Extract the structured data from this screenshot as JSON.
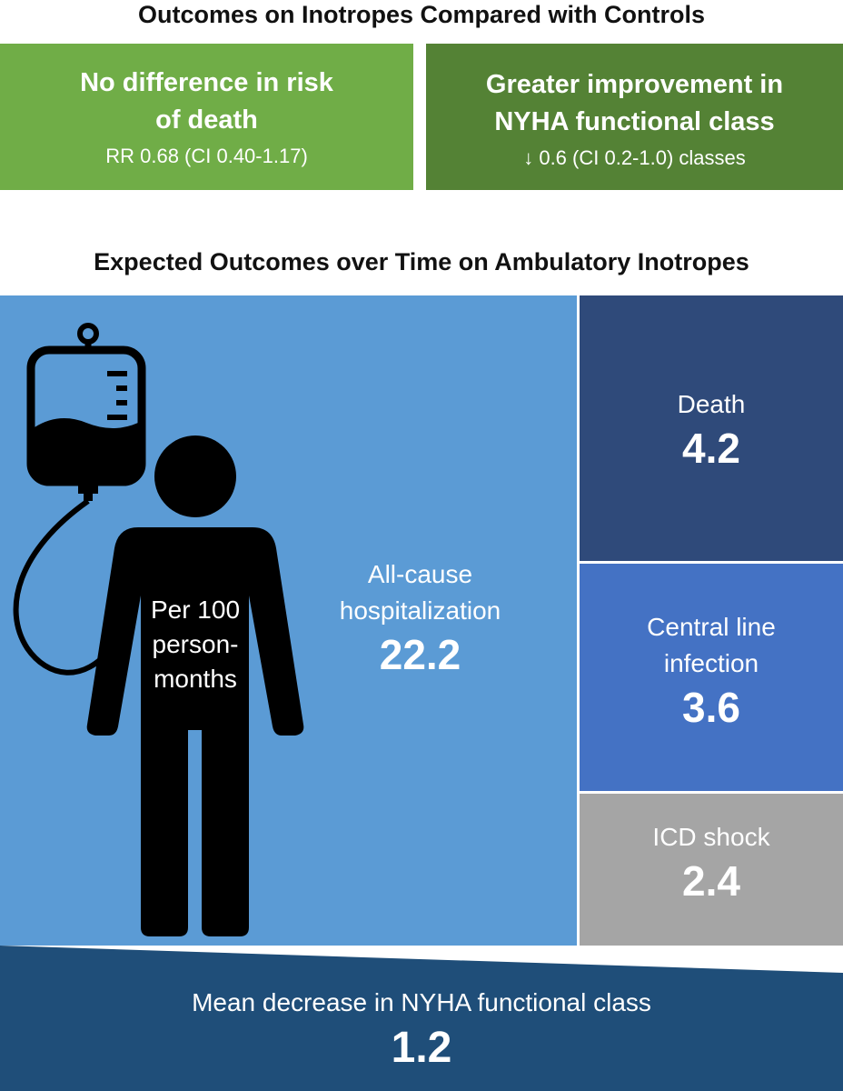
{
  "compare": {
    "title": "Outcomes on Inotropes Compared with Controls",
    "mortality": {
      "title_line1": "No difference in risk",
      "title_line2": "of death",
      "stat": "RR 0.68 (CI 0.40-1.17)",
      "color": "#70ad47"
    },
    "nyha": {
      "title_line1": "Greater improvement in",
      "title_line2": "NYHA functional class",
      "stat": "↓ 0.6 (CI 0.2-1.0) classes",
      "color": "#548235"
    }
  },
  "expected": {
    "title": "Expected Outcomes over Time on Ambulatory Inotropes",
    "person_label_line1": "Per 100",
    "person_label_line2": "person-",
    "person_label_line3": "months",
    "hospitalization": {
      "label_line1": "All-cause",
      "label_line2": "hospitalization",
      "value": "22.2",
      "color": "#5b9bd5"
    },
    "death": {
      "label": "Death",
      "value": "4.2",
      "color": "#2f4a7a"
    },
    "infection": {
      "label_line1": "Central line",
      "label_line2": "infection",
      "value": "3.6",
      "color": "#4472c4"
    },
    "icd": {
      "label": "ICD shock",
      "value": "2.4",
      "color": "#a5a5a5"
    },
    "nyha_decrease": {
      "label": "Mean decrease in NYHA functional class",
      "value": "1.2",
      "color": "#1f4e79"
    }
  },
  "icons": [
    "iv-bag-icon",
    "person-silhouette-icon"
  ]
}
